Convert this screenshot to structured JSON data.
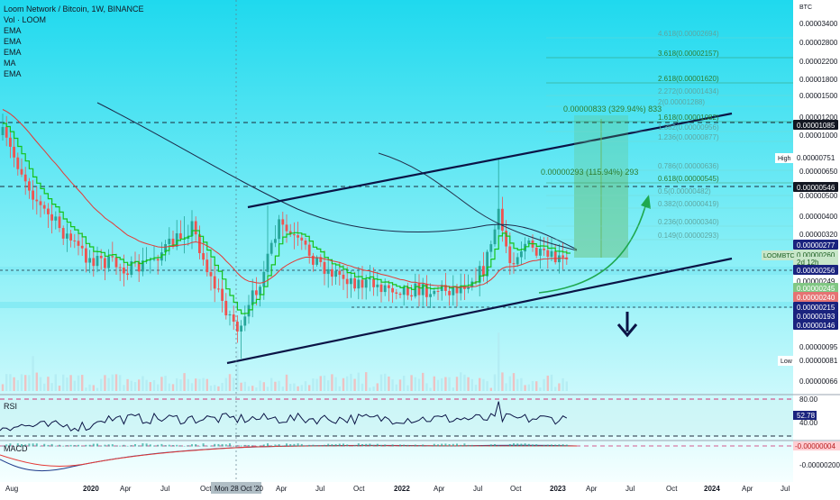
{
  "header": {
    "symbol": "Loom Network / Bitcoin, 1W, BINANCE",
    "volume_label": "Vol · LOOM",
    "indicators": [
      "EMA",
      "EMA",
      "EMA",
      "MA",
      "EMA"
    ]
  },
  "price_axis": {
    "unit": "BTC",
    "labels": [
      "0.00003400",
      "0.00002800",
      "0.00002200",
      "0.00001800",
      "0.00001500",
      "0.00001200",
      "0.00001000",
      "0.00000800",
      "0.00000650",
      "0.00000500",
      "0.00000400",
      "0.00000320",
      "0.00000095",
      "0.00000081",
      "0.00000066"
    ],
    "badges": [
      {
        "text": "0.00001085",
        "style": "dark"
      },
      {
        "text": "0.00000751",
        "style": "white"
      },
      {
        "text": "0.00000546",
        "style": "dark"
      },
      {
        "text": "0.00000277",
        "style": "navy"
      },
      {
        "text": "0.00000260",
        "style": "green"
      },
      {
        "text": "2d 12h",
        "style": "green"
      },
      {
        "text": "0.00000256",
        "style": "navy"
      },
      {
        "text": "0.00000249",
        "style": "white"
      },
      {
        "text": "0.00000245",
        "style": "lightgreen"
      },
      {
        "text": "0.00000240",
        "style": "red"
      },
      {
        "text": "0.00000215",
        "style": "navy"
      },
      {
        "text": "0.00000193",
        "style": "navy"
      },
      {
        "text": "0.00000146",
        "style": "navy"
      }
    ],
    "high_label": "High",
    "low_label": "Low",
    "symbol_tag": "LOOMBTC"
  },
  "fibonacci": [
    {
      "text": "4.618(0.00002694)",
      "faint": true
    },
    {
      "text": "3.618(0.00002157)",
      "faint": false
    },
    {
      "text": "2.618(0.00001620)",
      "faint": false
    },
    {
      "text": "2.272(0.00001434)",
      "faint": true
    },
    {
      "text": "2(0.00001288)",
      "faint": true
    },
    {
      "text": "1.618(0.00001082)",
      "faint": false
    },
    {
      "text": "1.382(0.00000956)",
      "faint": true
    },
    {
      "text": "1.236(0.00000877)",
      "faint": true
    },
    {
      "text": "0.786(0.00000636)",
      "faint": true
    },
    {
      "text": "0.618(0.00000545)",
      "faint": false
    },
    {
      "text": "0.5(0.00000482)",
      "faint": true
    },
    {
      "text": "0.382(0.00000419)",
      "faint": true
    },
    {
      "text": "0.236(0.00000340)",
      "faint": true
    },
    {
      "text": "0.149(0.00000293)",
      "faint": true
    }
  ],
  "measurements": [
    {
      "text": "0.00000833 (329.94%) 833"
    },
    {
      "text": "0.00000293 (115.94%) 293"
    }
  ],
  "rsi": {
    "label": "RSI",
    "current": "52.78",
    "levels": [
      "80.00",
      "40.00"
    ]
  },
  "macd": {
    "label": "MACD",
    "levels": [
      "-0.00000004",
      "-0.00000200"
    ]
  },
  "time_axis": {
    "labels": [
      "Aug",
      "2020",
      "Apr",
      "Jul",
      "Oct",
      "Mon 28 Oct '20",
      "Apr",
      "Jul",
      "Oct",
      "2022",
      "Apr",
      "Jul",
      "Oct",
      "2023",
      "Apr",
      "Jul",
      "Oct",
      "2024",
      "Apr",
      "Jul"
    ]
  },
  "colors": {
    "background_top": "#25dcef",
    "background_bottom": "#fbffff",
    "bull": "#26a69a",
    "bear": "#ef5350",
    "channel": "#0b1446",
    "fib": "#2e7d32",
    "box": "#66bb6a",
    "arrow_down": "#0b1446",
    "ema_green": "#16c21c",
    "ema_red": "#e53935",
    "ma_dark": "#1c2a4a",
    "volume": "#b2ebf2"
  },
  "chart_data": {
    "type": "candlestick",
    "title": "Loom Network / Bitcoin, 1W, BINANCE",
    "ylabel": "BTC",
    "y_scale": "log",
    "high_marker": "0.00000751",
    "low_marker": "0.00000081",
    "last_price": "0.00000260",
    "x_range": [
      "Aug 2019",
      "Jul 2024"
    ],
    "annotations": [
      "ascending channel",
      "fibonacci extension",
      "projected up-curve",
      "down arrow"
    ]
  }
}
